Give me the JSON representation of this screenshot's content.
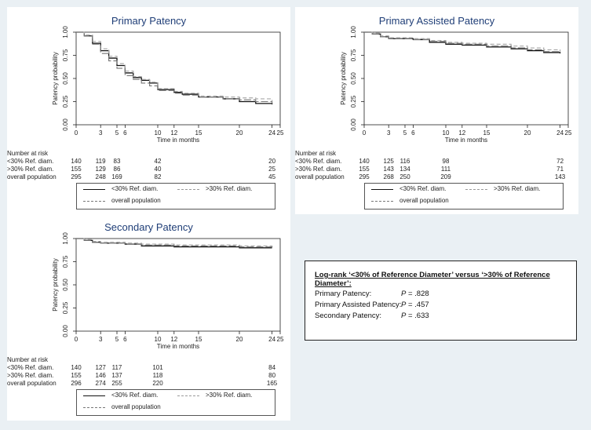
{
  "chart_data": [
    {
      "type": "line",
      "title": "Primary Patency",
      "xlabel": "Time in months",
      "ylabel": "Patency probability",
      "xlim": [
        0,
        25
      ],
      "ylim": [
        0,
        1
      ],
      "xticks": [
        0,
        3,
        5,
        6,
        10,
        12,
        15,
        20,
        24,
        25
      ],
      "yticks": [
        "0.00",
        "0.25",
        "0.50",
        "0.75",
        "1.00"
      ],
      "series": [
        {
          "name": "<30% Ref. diam.",
          "style": "solid",
          "x": [
            0,
            1,
            2,
            3,
            4,
            5,
            6,
            7,
            8,
            9,
            10,
            12,
            13,
            15,
            18,
            20,
            22,
            24
          ],
          "y": [
            1.0,
            0.96,
            0.88,
            0.8,
            0.72,
            0.64,
            0.56,
            0.51,
            0.48,
            0.45,
            0.38,
            0.35,
            0.33,
            0.3,
            0.28,
            0.25,
            0.23,
            0.22
          ]
        },
        {
          "name": ">30% Ref. diam.",
          "style": "dash",
          "x": [
            0,
            1,
            2,
            3,
            4,
            5,
            6,
            7,
            8,
            9,
            10,
            12,
            13,
            15,
            18,
            20,
            22,
            24
          ],
          "y": [
            1.0,
            0.97,
            0.9,
            0.82,
            0.74,
            0.66,
            0.58,
            0.52,
            0.49,
            0.46,
            0.39,
            0.36,
            0.34,
            0.31,
            0.3,
            0.29,
            0.28,
            0.25
          ]
        },
        {
          "name": "overall population",
          "style": "longdash",
          "x": [
            0,
            1,
            2,
            3,
            4,
            5,
            6,
            7,
            8,
            9,
            10,
            12,
            13,
            15,
            18,
            20,
            22,
            24
          ],
          "y": [
            1.0,
            0.96,
            0.87,
            0.77,
            0.69,
            0.61,
            0.53,
            0.49,
            0.45,
            0.42,
            0.37,
            0.34,
            0.32,
            0.3,
            0.28,
            0.27,
            0.25,
            0.23
          ]
        }
      ],
      "risk_table": {
        "header": "Number at risk",
        "times": [
          0,
          3,
          5,
          10,
          24
        ],
        "rows": [
          {
            "label": "<30% Ref. diam.",
            "values": [
              "140",
              "119",
              "83",
              "42",
              "20"
            ]
          },
          {
            "label": ">30% Ref. diam.",
            "values": [
              "155",
              "129",
              "86",
              "40",
              "25"
            ]
          },
          {
            "label": "overall population",
            "values": [
              "295",
              "248",
              "169",
              "82",
              "45"
            ]
          }
        ]
      },
      "legend": [
        "<30% Ref. diam.",
        ">30% Ref. diam.",
        "overall population"
      ]
    },
    {
      "type": "line",
      "title": "Primary Assisted Patency",
      "xlabel": "Time in months",
      "ylabel": "Patency probability",
      "xlim": [
        0,
        25
      ],
      "ylim": [
        0,
        1
      ],
      "xticks": [
        0,
        3,
        5,
        6,
        10,
        12,
        15,
        20,
        24,
        25
      ],
      "yticks": [
        "0.00",
        "0.25",
        "0.50",
        "0.75",
        "1.00"
      ],
      "series": [
        {
          "name": "<30% Ref. diam.",
          "style": "solid",
          "x": [
            0,
            1,
            2,
            3,
            6,
            8,
            10,
            12,
            15,
            18,
            20,
            22,
            24
          ],
          "y": [
            1.0,
            0.98,
            0.95,
            0.93,
            0.92,
            0.89,
            0.87,
            0.86,
            0.84,
            0.82,
            0.8,
            0.78,
            0.77
          ]
        },
        {
          "name": ">30% Ref. diam.",
          "style": "dash",
          "x": [
            0,
            1,
            2,
            3,
            6,
            8,
            10,
            12,
            15,
            18,
            20,
            22,
            24
          ],
          "y": [
            1.0,
            0.99,
            0.96,
            0.94,
            0.93,
            0.91,
            0.89,
            0.88,
            0.87,
            0.85,
            0.83,
            0.81,
            0.79
          ]
        },
        {
          "name": "overall population",
          "style": "longdash",
          "x": [
            0,
            1,
            2,
            3,
            6,
            8,
            10,
            12,
            15,
            18,
            20,
            22,
            24
          ],
          "y": [
            1.0,
            0.98,
            0.95,
            0.93,
            0.92,
            0.9,
            0.88,
            0.87,
            0.85,
            0.83,
            0.81,
            0.79,
            0.78
          ]
        }
      ],
      "risk_table": {
        "header": "Number at risk",
        "times": [
          0,
          3,
          5,
          10,
          24
        ],
        "rows": [
          {
            "label": "<30% Ref. diam.",
            "values": [
              "140",
              "125",
              "116",
              "98",
              "72"
            ]
          },
          {
            "label": ">30% Ref. diam.",
            "values": [
              "155",
              "143",
              "134",
              "111",
              "71"
            ]
          },
          {
            "label": "overall population",
            "values": [
              "295",
              "268",
              "250",
              "209",
              "143"
            ]
          }
        ]
      },
      "legend": [
        "<30% Ref. diam.",
        ">30% Ref. diam.",
        "overall population"
      ]
    },
    {
      "type": "line",
      "title": "Secondary Patency",
      "xlabel": "Time in months",
      "ylabel": "Patency probability",
      "xlim": [
        0,
        25
      ],
      "ylim": [
        0,
        1
      ],
      "xticks": [
        0,
        3,
        5,
        6,
        10,
        12,
        15,
        20,
        24,
        25
      ],
      "yticks": [
        "0.00",
        "0.25",
        "0.50",
        "0.75",
        "1.00"
      ],
      "series": [
        {
          "name": "<30% Ref. diam.",
          "style": "solid",
          "x": [
            0,
            1,
            2,
            3,
            6,
            8,
            10,
            12,
            15,
            20,
            24
          ],
          "y": [
            1.0,
            0.98,
            0.96,
            0.95,
            0.94,
            0.92,
            0.92,
            0.91,
            0.91,
            0.9,
            0.9
          ]
        },
        {
          "name": ">30% Ref. diam.",
          "style": "dash",
          "x": [
            0,
            1,
            2,
            3,
            6,
            8,
            10,
            12,
            15,
            20,
            24
          ],
          "y": [
            1.0,
            0.99,
            0.97,
            0.96,
            0.95,
            0.94,
            0.94,
            0.93,
            0.93,
            0.92,
            0.91
          ]
        },
        {
          "name": "overall population",
          "style": "longdash",
          "x": [
            0,
            1,
            2,
            3,
            6,
            8,
            10,
            12,
            15,
            20,
            24
          ],
          "y": [
            1.0,
            0.98,
            0.96,
            0.95,
            0.94,
            0.93,
            0.93,
            0.92,
            0.92,
            0.91,
            0.9
          ]
        }
      ],
      "risk_table": {
        "header": "Number at risk",
        "times": [
          0,
          3,
          5,
          10,
          24
        ],
        "rows": [
          {
            "label": "<30% Ref. diam.",
            "values": [
              "140",
              "127",
              "117",
              "101",
              "84"
            ]
          },
          {
            "label": ">30% Ref. diam.",
            "values": [
              "155",
              "146",
              "137",
              "118",
              "80"
            ]
          },
          {
            "label": "overall population",
            "values": [
              "296",
              "274",
              "255",
              "220",
              "165"
            ]
          }
        ]
      },
      "legend": [
        "<30% Ref. diam.",
        ">30% Ref. diam.",
        "overall population"
      ]
    }
  ],
  "logrank": {
    "title": "Log-rank ‘<30% of Reference Diameter’ versus ‘>30% of Reference Diameter’:",
    "rows": [
      {
        "label": "Primary Patency:",
        "p": "P",
        "value": " = .828"
      },
      {
        "label": "Primary Assisted Patency:",
        "p": "P",
        "value": " = .457"
      },
      {
        "label": "Secondary Patency:",
        "p": "P",
        "value": " = .633"
      }
    ]
  }
}
